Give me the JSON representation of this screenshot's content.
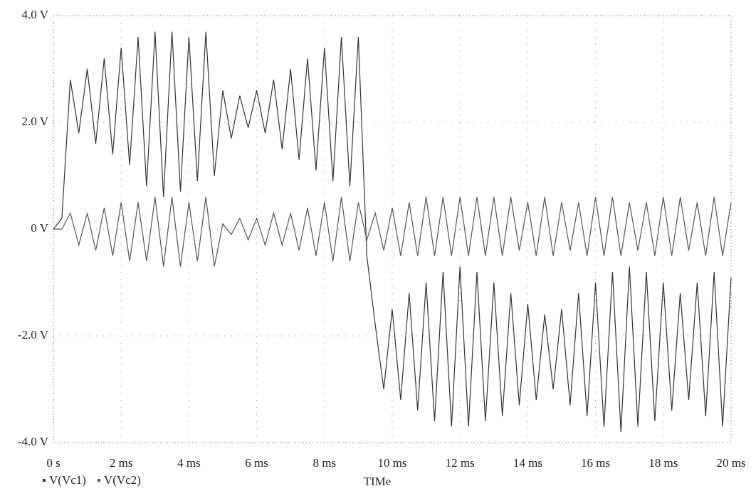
{
  "chart_data": {
    "type": "line",
    "x_label": "TIMe",
    "x": [
      0,
      0.25,
      0.5,
      0.75,
      1,
      1.25,
      1.5,
      1.75,
      2,
      2.25,
      2.5,
      2.75,
      3,
      3.25,
      3.5,
      3.75,
      4,
      4.25,
      4.5,
      4.75,
      5,
      5.25,
      5.5,
      5.75,
      6,
      6.25,
      6.5,
      6.75,
      7,
      7.25,
      7.5,
      7.75,
      8,
      8.25,
      8.5,
      8.75,
      9,
      9.25,
      9.5,
      9.75,
      10,
      10.25,
      10.5,
      10.75,
      11,
      11.25,
      11.5,
      11.75,
      12,
      12.25,
      12.5,
      12.75,
      13,
      13.25,
      13.5,
      13.75,
      14,
      14.25,
      14.5,
      14.75,
      15,
      15.25,
      15.5,
      15.75,
      16,
      16.25,
      16.5,
      16.75,
      17,
      17.25,
      17.5,
      17.75,
      18,
      18.25,
      18.5,
      18.75,
      19,
      19.25,
      19.5,
      19.75,
      20
    ],
    "series": [
      {
        "name": "V(Vc1)",
        "color": "#333333",
        "values": [
          0,
          0.2,
          2.8,
          1.8,
          3.0,
          1.6,
          3.2,
          1.4,
          3.4,
          1.2,
          3.6,
          0.8,
          3.7,
          0.6,
          3.7,
          0.7,
          3.6,
          0.9,
          3.7,
          1.0,
          2.6,
          1.7,
          2.5,
          1.9,
          2.6,
          1.8,
          2.8,
          1.5,
          3.0,
          1.3,
          3.2,
          1.1,
          3.4,
          0.9,
          3.6,
          0.8,
          3.6,
          -0.5,
          -1.8,
          -3.0,
          -1.5,
          -3.2,
          -1.2,
          -3.4,
          -1.0,
          -3.6,
          -0.8,
          -3.7,
          -0.7,
          -3.7,
          -0.8,
          -3.6,
          -1.0,
          -3.5,
          -1.2,
          -3.3,
          -1.4,
          -3.2,
          -1.6,
          -3.0,
          -1.5,
          -3.3,
          -1.2,
          -3.5,
          -1.0,
          -3.7,
          -0.8,
          -3.8,
          -0.7,
          -3.7,
          -0.8,
          -3.6,
          -1.0,
          -3.4,
          -1.2,
          -3.2,
          -1.0,
          -3.5,
          -0.8,
          -3.7,
          -0.9
        ]
      },
      {
        "name": "V(Vc2)",
        "color": "#555555",
        "values": [
          0,
          0,
          0.3,
          -0.3,
          0.3,
          -0.4,
          0.4,
          -0.5,
          0.5,
          -0.6,
          0.5,
          -0.6,
          0.6,
          -0.7,
          0.6,
          -0.7,
          0.5,
          -0.6,
          0.6,
          -0.7,
          0.1,
          -0.1,
          0.2,
          -0.2,
          0.2,
          -0.3,
          0.3,
          -0.3,
          0.3,
          -0.4,
          0.4,
          -0.5,
          0.5,
          -0.6,
          0.6,
          -0.6,
          0.5,
          -0.2,
          0.3,
          -0.4,
          0.4,
          -0.5,
          0.5,
          -0.5,
          0.6,
          -0.5,
          0.6,
          -0.5,
          0.6,
          -0.5,
          0.6,
          -0.5,
          0.6,
          -0.5,
          0.6,
          -0.4,
          0.5,
          -0.5,
          0.6,
          -0.5,
          0.5,
          -0.4,
          0.5,
          -0.5,
          0.6,
          -0.5,
          0.6,
          -0.5,
          0.5,
          -0.4,
          0.5,
          -0.5,
          0.6,
          -0.5,
          0.6,
          -0.4,
          0.5,
          -0.5,
          0.6,
          -0.5,
          0.5
        ]
      }
    ],
    "xlim": [
      0,
      20
    ],
    "xticks": [
      {
        "value": 0,
        "label": "0 s"
      },
      {
        "value": 2,
        "label": "2 ms"
      },
      {
        "value": 4,
        "label": "4 ms"
      },
      {
        "value": 6,
        "label": "6 ms"
      },
      {
        "value": 8,
        "label": "8 ms"
      },
      {
        "value": 10,
        "label": "10 ms"
      },
      {
        "value": 12,
        "label": "12 ms"
      },
      {
        "value": 14,
        "label": "14 ms"
      },
      {
        "value": 16,
        "label": "16 ms"
      },
      {
        "value": 18,
        "label": "18 ms"
      },
      {
        "value": 20,
        "label": "20 ms"
      }
    ],
    "ylim": [
      -4,
      4
    ],
    "yticks": [
      {
        "value": -4,
        "label": "-4.0 V"
      },
      {
        "value": -2,
        "label": "-2.0 V"
      },
      {
        "value": 0,
        "label": "0 V"
      },
      {
        "value": 2,
        "label": "2.0 V"
      },
      {
        "value": 4,
        "label": "4.0 V"
      }
    ],
    "grid": true,
    "legend": "bottom-left"
  }
}
